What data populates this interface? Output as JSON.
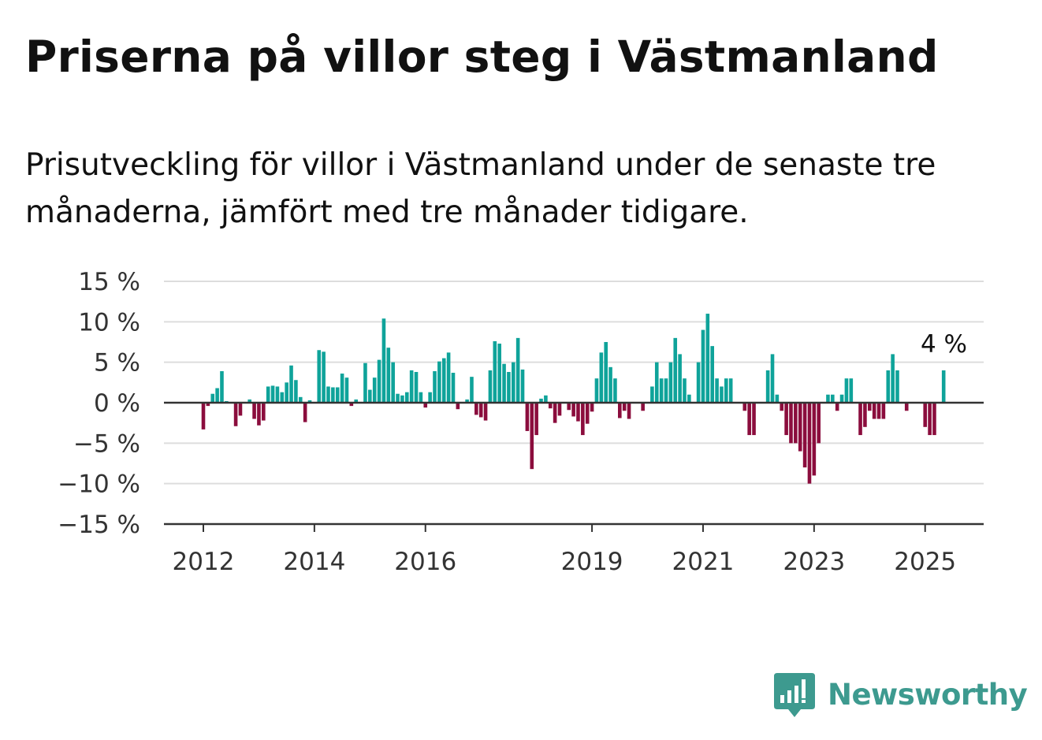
{
  "title": "Priserna på villor steg i Västmanland",
  "subtitle": "Prisutveckling för villor i Västmanland under de senaste tre månaderna, jämfört med tre månader tidigare.",
  "brand": {
    "name": "Newsworthy",
    "icon": "newsworthy-logo-icon"
  },
  "colors": {
    "positive": "#0fa39a",
    "negative": "#8b0d3d",
    "grid": "#dddddd",
    "axis": "#333333"
  },
  "chart_data": {
    "type": "bar",
    "ylim": [
      -15,
      15
    ],
    "yticks": [
      15,
      10,
      5,
      0,
      -5,
      -10,
      -15
    ],
    "ytick_labels": [
      "15 %",
      "10 %",
      "5 %",
      "0 %",
      "−5 %",
      "−10 %",
      "−15 %"
    ],
    "xticks": [
      {
        "label": "2012",
        "index": 0
      },
      {
        "label": "2014",
        "index": 24
      },
      {
        "label": "2016",
        "index": 48
      },
      {
        "label": "2019",
        "index": 84
      },
      {
        "label": "2021",
        "index": 108
      },
      {
        "label": "2023",
        "index": 132
      },
      {
        "label": "2025",
        "index": 156
      }
    ],
    "grid": true,
    "annotation": "4 %",
    "start": "2012-01",
    "frequency": "monthly",
    "values": [
      -3.3,
      -0.4,
      1.1,
      1.8,
      3.9,
      0.2,
      0.1,
      -2.9,
      -1.6,
      0,
      0.4,
      -2.0,
      -2.8,
      -2.2,
      2.0,
      2.1,
      2.0,
      1.3,
      2.5,
      4.6,
      2.8,
      0.7,
      -2.4,
      0.3,
      0,
      6.5,
      6.3,
      2.0,
      1.9,
      1.9,
      3.6,
      3.1,
      -0.4,
      0.4,
      0,
      4.9,
      1.6,
      3.1,
      5.3,
      10.4,
      6.8,
      5.0,
      1.1,
      0.9,
      1.3,
      4.0,
      3.8,
      1.3,
      -0.6,
      1.3,
      3.9,
      5.1,
      5.5,
      6.2,
      3.7,
      -0.8,
      0,
      0.4,
      3.2,
      -1.5,
      -1.8,
      -2.2,
      4.0,
      7.6,
      7.3,
      4.8,
      3.8,
      5.0,
      8.0,
      4.1,
      -3.5,
      -8.2,
      -4.0,
      0.5,
      0.9,
      -0.7,
      -2.5,
      -1.6,
      0,
      -0.9,
      -1.7,
      -2.3,
      -4.0,
      -2.6,
      -1.1,
      3.0,
      6.2,
      7.5,
      4.4,
      3.0,
      -1.9,
      -1.0,
      -2.0,
      0,
      0,
      -1.0,
      0,
      2.0,
      5.0,
      3.0,
      3.0,
      5.0,
      8.0,
      6.0,
      3.0,
      1.0,
      0,
      5.0,
      9.0,
      11.0,
      7.0,
      3.0,
      2.0,
      3.0,
      3.0,
      0,
      0,
      -1.0,
      -4.0,
      -4.0,
      0,
      0,
      4.0,
      6.0,
      1.0,
      -1.0,
      -4.0,
      -5.0,
      -5.0,
      -6.0,
      -8.0,
      -10.0,
      -9.0,
      -5.0,
      0,
      1.0,
      1.0,
      -1.0,
      1.0,
      3.0,
      3.0,
      0,
      -4.0,
      -3.0,
      -1.0,
      -2.0,
      -2.0,
      -2.0,
      4.0,
      6.0,
      4.0,
      0,
      -1.0,
      0,
      0,
      0,
      -3.0,
      -4.0,
      -4.0,
      0,
      4.0
    ]
  }
}
